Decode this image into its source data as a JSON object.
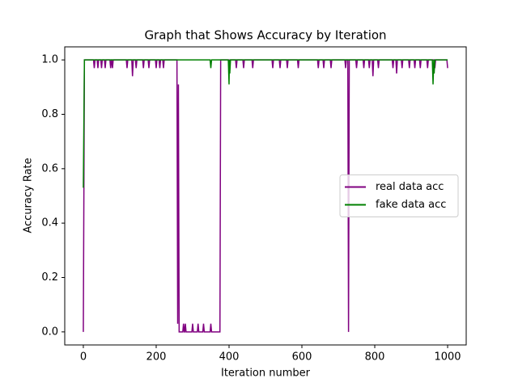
{
  "chart_data": {
    "type": "line",
    "title": "Graph that Shows Accuracy by Iteration",
    "x_label": "Iteration number",
    "y_label": "Accuracy Rate",
    "xlim": [
      -51,
      1051
    ],
    "ylim": [
      -0.048,
      1.048
    ],
    "xticks": [
      0,
      200,
      400,
      600,
      800,
      1000
    ],
    "yticks": [
      {
        "value": 0,
        "label": "0.0"
      },
      0.2,
      0.4,
      0.6,
      0.8,
      {
        "value": 1,
        "label": "1.0"
      }
    ],
    "legend": "center right",
    "series": [
      {
        "name": "real data acc",
        "color": "#800080",
        "x": [
          0,
          3,
          28,
          30,
          32,
          38,
          40,
          42,
          48,
          50,
          52,
          58,
          60,
          62,
          73,
          75,
          77,
          78,
          80,
          82,
          118,
          120,
          122,
          133,
          135,
          137,
          143,
          145,
          147,
          163,
          165,
          167,
          178,
          180,
          182,
          198,
          200,
          202,
          208,
          210,
          212,
          218,
          220,
          222,
          257,
          259,
          261,
          263,
          273,
          275,
          277,
          278,
          280,
          282,
          298,
          300,
          302,
          313,
          315,
          317,
          328,
          330,
          332,
          348,
          350,
          352,
          375,
          377,
          398,
          400,
          402,
          418,
          420,
          422,
          438,
          440,
          442,
          463,
          465,
          467,
          518,
          520,
          522,
          538,
          540,
          542,
          558,
          560,
          562,
          588,
          590,
          592,
          643,
          645,
          647,
          658,
          660,
          662,
          678,
          680,
          682,
          718,
          720,
          722,
          726,
          728,
          730,
          748,
          750,
          752,
          768,
          770,
          772,
          783,
          785,
          787,
          793,
          795,
          797,
          808,
          810,
          812,
          848,
          850,
          852,
          858,
          860,
          862,
          873,
          875,
          877,
          893,
          895,
          897,
          908,
          910,
          912,
          923,
          925,
          927,
          943,
          945,
          947,
          963,
          965,
          967,
          998,
          1000
        ],
        "values": [
          0,
          1,
          1,
          0.97,
          1,
          1,
          0.97,
          1,
          1,
          0.97,
          1,
          1,
          0.97,
          1,
          1,
          0.97,
          1,
          1,
          0.97,
          1,
          1,
          0.97,
          1,
          1,
          0.94,
          1,
          1,
          0.97,
          1,
          1,
          0.97,
          1,
          1,
          0.97,
          1,
          1,
          0.97,
          1,
          1,
          0.97,
          1,
          1,
          0.97,
          1,
          1,
          0.03,
          0.91,
          0,
          0,
          0.03,
          0,
          0,
          0.03,
          0,
          0,
          0.03,
          0,
          0,
          0.03,
          0,
          0,
          0.03,
          0,
          0,
          0.03,
          0,
          0,
          1,
          1,
          0.97,
          1,
          1,
          0.97,
          1,
          1,
          0.97,
          1,
          1,
          0.97,
          1,
          1,
          0.97,
          1,
          1,
          0.97,
          1,
          1,
          0.97,
          1,
          1,
          0.97,
          1,
          1,
          0.97,
          1,
          1,
          0.97,
          1,
          1,
          0.97,
          1,
          1,
          0.97,
          1,
          1,
          0,
          1,
          1,
          0.97,
          1,
          1,
          0.97,
          1,
          1,
          0.97,
          1,
          1,
          0.94,
          1,
          1,
          0.97,
          1,
          1,
          0.97,
          1,
          1,
          0.95,
          1,
          1,
          0.97,
          1,
          1,
          0.97,
          1,
          1,
          0.97,
          1,
          1,
          0.97,
          1,
          1,
          0.97,
          1,
          1,
          0.97,
          1,
          1,
          0.97
        ]
      },
      {
        "name": "fake data acc",
        "color": "#008000",
        "x": [
          0,
          3,
          348,
          350,
          352,
          398,
          400,
          401,
          402,
          404,
          958,
          960,
          962,
          963,
          965,
          1000
        ],
        "values": [
          0.53,
          1,
          1,
          0.97,
          1,
          1,
          0.91,
          1,
          0.95,
          1,
          1,
          0.91,
          1,
          0.95,
          1,
          1
        ]
      }
    ]
  }
}
